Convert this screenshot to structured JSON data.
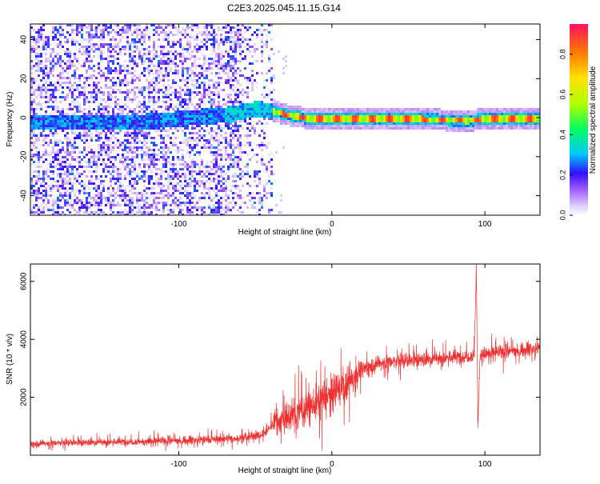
{
  "title": "C2E3.2025.045.11.15.G14",
  "colors": {
    "snr_line": "#f03030",
    "axis": "#000000",
    "background": "#ffffff"
  },
  "chart_data": [
    {
      "type": "heatmap",
      "xlabel": "Height of straight line (km)",
      "ylabel": "Frequency (Hz)",
      "xlim": [
        -197,
        136
      ],
      "ylim": [
        -50,
        48
      ],
      "x_ticks": [
        -100,
        0,
        100
      ],
      "y_ticks": [
        -40,
        -20,
        0,
        20,
        40
      ],
      "colorbar": {
        "label": "Normalized spectral amplitude",
        "range": [
          0,
          0.95
        ],
        "ticks": [
          0.0,
          0.2,
          0.4,
          0.6,
          0.8
        ]
      },
      "features": {
        "noise_region_x": [
          -197,
          -40
        ],
        "ridge_frequency": [
          [
            -130,
            -2
          ],
          [
            -100,
            0
          ],
          [
            -70,
            2
          ],
          [
            -50,
            5
          ],
          [
            -40,
            4
          ],
          [
            -30,
            2
          ],
          [
            -15,
            0
          ],
          [
            0,
            0
          ],
          [
            50,
            0
          ],
          [
            88,
            -1
          ],
          [
            100,
            0
          ],
          [
            136,
            0
          ]
        ]
      }
    },
    {
      "type": "line",
      "xlabel": "Height of straight line (km)",
      "ylabel": "SNR (10 * v/v)",
      "xlim": [
        -197,
        136
      ],
      "ylim": [
        0,
        6600
      ],
      "x_ticks": [
        -100,
        0,
        100
      ],
      "y_ticks": [
        2000,
        4000,
        6000
      ],
      "trend": [
        [
          -197,
          400
        ],
        [
          -150,
          450
        ],
        [
          -100,
          500
        ],
        [
          -60,
          580
        ],
        [
          -45,
          700
        ],
        [
          -38,
          1100
        ],
        [
          -25,
          1400
        ],
        [
          -10,
          1800
        ],
        [
          0,
          2100
        ],
        [
          10,
          2500
        ],
        [
          18,
          2900
        ],
        [
          25,
          3100
        ],
        [
          35,
          3200
        ],
        [
          60,
          3300
        ],
        [
          85,
          3400
        ],
        [
          100,
          3500
        ],
        [
          120,
          3600
        ],
        [
          136,
          3700
        ]
      ],
      "noise_amplitude": [
        [
          -197,
          180
        ],
        [
          -40,
          260
        ],
        [
          -35,
          900
        ],
        [
          0,
          1100
        ],
        [
          15,
          900
        ],
        [
          20,
          450
        ],
        [
          136,
          380
        ]
      ],
      "spike": {
        "x_start": 93,
        "x_end": 97,
        "max": 6600,
        "min": 1100
      }
    }
  ]
}
